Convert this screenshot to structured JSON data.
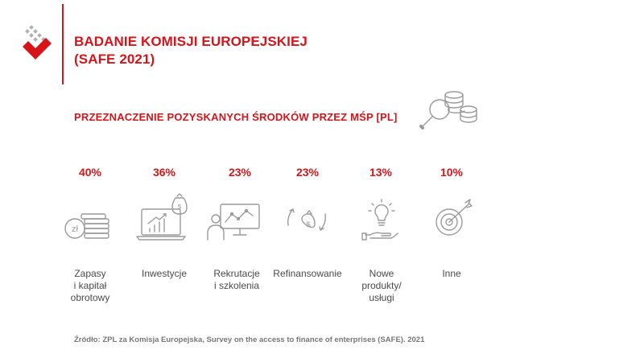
{
  "header": {
    "title_line1": "BADANIE KOMISJI EUROPEJSKIEJ",
    "title_line2": "(SAFE 2021)",
    "subtitle": "PRZEZNACZENIE POZYSKANYCH ŚRODKÓW PRZEZ MŚP [PL]"
  },
  "colors": {
    "accent": "#d7141a",
    "icon": "#9a9a9a",
    "text": "#4a4a4a"
  },
  "chart_data": {
    "type": "table",
    "title": "PRZEZNACZENIE POZYSKANYCH ŚRODKÓW PRZEZ MŚP [PL]",
    "categories": [
      "Zapasy\ni kapitał\nobrotowy",
      "Inwestycje",
      "Rekrutacje\ni szkolenia",
      "Refinansowanie",
      "Nowe\nprodukty/\nusługi",
      "Inne"
    ],
    "values": [
      40,
      36,
      23,
      23,
      13,
      10
    ],
    "value_labels": [
      "40%",
      "36%",
      "23%",
      "23%",
      "13%",
      "10%"
    ],
    "icons": [
      "coins-zloty-icon",
      "laptop-growth-icon",
      "recruitment-training-icon",
      "refinancing-cycle-icon",
      "lightbulb-hand-icon",
      "target-icon"
    ],
    "unit": "%"
  },
  "footer": {
    "source": "Źródło: ZPL za Komisja Europejska, Survey on the access to finance of enterprises (SAFE). 2021"
  }
}
